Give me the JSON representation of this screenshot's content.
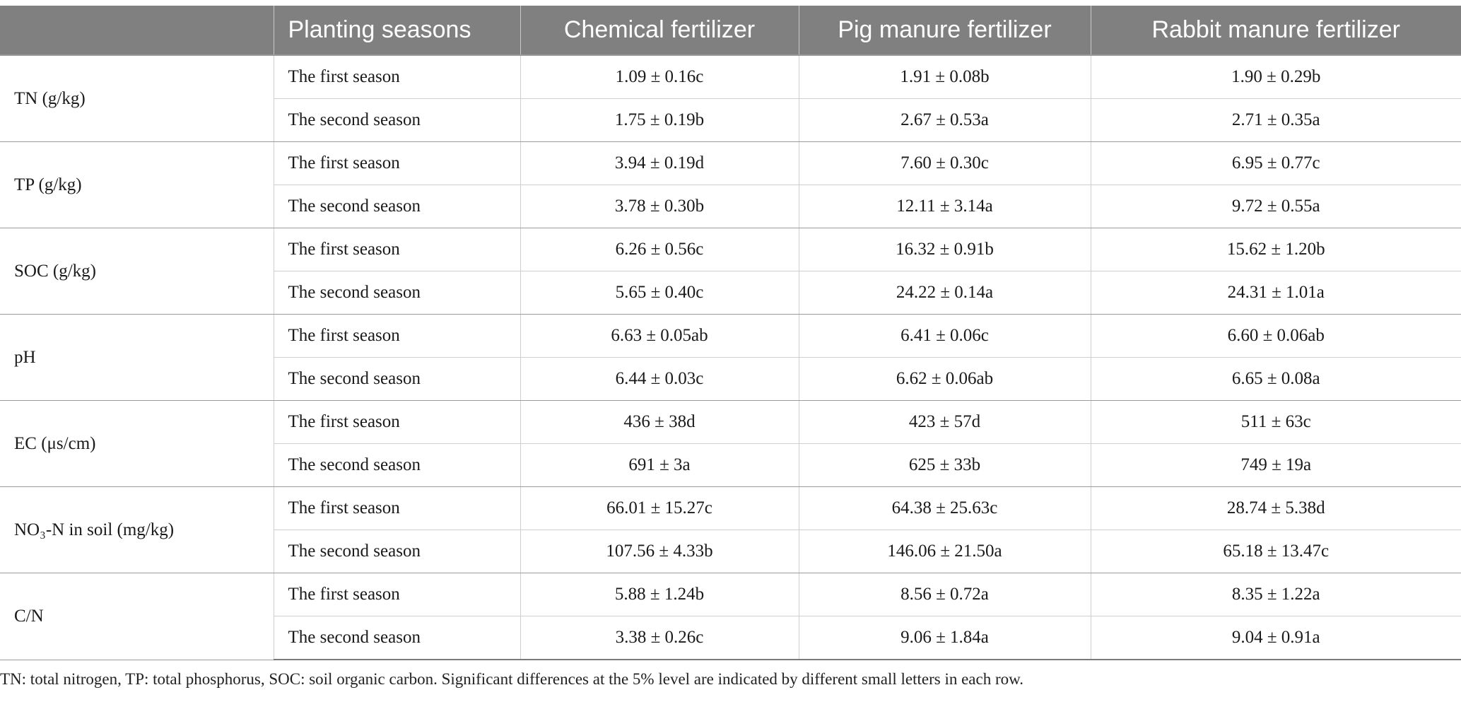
{
  "table": {
    "columns": [
      "",
      "Planting seasons",
      "Chemical fertilizer",
      "Pig manure fertilizer",
      "Rabbit manure fertilizer"
    ],
    "groups": [
      {
        "parameter": "TN (g/kg)",
        "rows": [
          {
            "season": "The first season",
            "values": [
              "1.09 ± 0.16c",
              "1.91 ± 0.08b",
              "1.90 ± 0.29b"
            ]
          },
          {
            "season": "The second season",
            "values": [
              "1.75 ± 0.19b",
              "2.67 ± 0.53a",
              "2.71 ± 0.35a"
            ]
          }
        ]
      },
      {
        "parameter": "TP (g/kg)",
        "rows": [
          {
            "season": "The first season",
            "values": [
              "3.94 ± 0.19d",
              "7.60 ± 0.30c",
              "6.95 ± 0.77c"
            ]
          },
          {
            "season": "The second season",
            "values": [
              "3.78 ± 0.30b",
              "12.11 ± 3.14a",
              "9.72 ± 0.55a"
            ]
          }
        ]
      },
      {
        "parameter": "SOC (g/kg)",
        "rows": [
          {
            "season": "The first season",
            "values": [
              "6.26 ± 0.56c",
              "16.32 ± 0.91b",
              "15.62 ± 1.20b"
            ]
          },
          {
            "season": "The second season",
            "values": [
              "5.65 ± 0.40c",
              "24.22 ± 0.14a",
              "24.31 ± 1.01a"
            ]
          }
        ]
      },
      {
        "parameter": "pH",
        "rows": [
          {
            "season": "The first season",
            "values": [
              "6.63 ± 0.05ab",
              "6.41 ± 0.06c",
              "6.60 ± 0.06ab"
            ]
          },
          {
            "season": "The second season",
            "values": [
              "6.44 ± 0.03c",
              "6.62 ± 0.06ab",
              "6.65 ± 0.08a"
            ]
          }
        ]
      },
      {
        "parameter": "EC (μs/cm)",
        "rows": [
          {
            "season": "The first season",
            "values": [
              "436 ± 38d",
              "423 ± 57d",
              "511 ± 63c"
            ]
          },
          {
            "season": "The second season",
            "values": [
              "691 ± 3a",
              "625 ± 33b",
              "749 ± 19a"
            ]
          }
        ]
      },
      {
        "parameter": "NO₃-N in soil (mg/kg)",
        "rows": [
          {
            "season": "The first season",
            "values": [
              "66.01 ± 15.27c",
              "64.38 ± 25.63c",
              "28.74 ± 5.38d"
            ]
          },
          {
            "season": "The second season",
            "values": [
              "107.56 ± 4.33b",
              "146.06 ± 21.50a",
              "65.18 ± 13.47c"
            ]
          }
        ]
      },
      {
        "parameter": "C/N",
        "rows": [
          {
            "season": "The first season",
            "values": [
              "5.88 ± 1.24b",
              "8.56 ± 0.72a",
              "8.35 ± 1.22a"
            ]
          },
          {
            "season": "The second season",
            "values": [
              "3.38 ± 0.26c",
              "9.06 ± 1.84a",
              "9.04 ± 0.91a"
            ]
          }
        ]
      }
    ]
  },
  "footnote": "TN: total nitrogen, TP: total phosphorus, SOC: soil organic carbon. Significant differences at the 5% level are indicated by different small letters in each row."
}
